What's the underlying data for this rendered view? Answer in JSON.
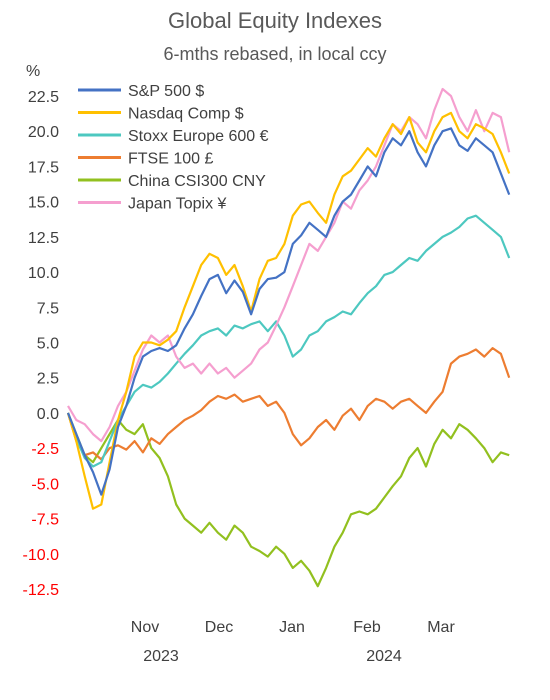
{
  "chart_data": {
    "type": "line",
    "title": "Global Equity Indexes",
    "subtitle": "6-mths rebased, in local ccy",
    "ylabel": "%",
    "ylim": [
      -12.5,
      22.5
    ],
    "yticks": [
      "22.5",
      "20.0",
      "17.5",
      "15.0",
      "12.5",
      "10.0",
      "7.5",
      "5.0",
      "2.5",
      "0.0",
      "-2.5",
      "-5.0",
      "-7.5",
      "-10.0",
      "-12.5"
    ],
    "x_months": [
      "Nov",
      "Dec",
      "Jan",
      "Feb",
      "Mar"
    ],
    "x_years": [
      "2023",
      "2024"
    ],
    "xlim_days": [
      0,
      160
    ],
    "negative_tick_color": "#ff0000",
    "positive_tick_color": "#404040",
    "legend_position": "top-left",
    "series": [
      {
        "name": "S&P 500 $",
        "color": "#4472c4",
        "x": [
          0,
          3,
          6,
          9,
          12,
          15,
          18,
          21,
          24,
          27,
          30,
          33,
          36,
          39,
          42,
          45,
          48,
          51,
          54,
          57,
          60,
          63,
          66,
          69,
          72,
          75,
          78,
          81,
          84,
          87,
          90,
          93,
          96,
          99,
          102,
          105,
          108,
          111,
          114,
          117,
          120,
          123,
          126,
          129,
          132,
          135,
          138,
          141,
          144,
          147,
          150,
          153,
          156,
          159
        ],
        "y": [
          0.0,
          -1.5,
          -3.0,
          -4.2,
          -5.8,
          -4.0,
          -1.0,
          0.5,
          2.5,
          4.0,
          4.4,
          4.6,
          4.4,
          4.8,
          6.0,
          7.0,
          8.3,
          9.5,
          9.8,
          8.5,
          9.4,
          8.6,
          7.0,
          8.8,
          9.5,
          9.6,
          10.0,
          12.0,
          12.6,
          13.5,
          13.0,
          12.5,
          14.0,
          15.0,
          15.5,
          16.5,
          17.5,
          16.8,
          18.5,
          19.5,
          19.0,
          20.0,
          18.5,
          17.5,
          19.0,
          20.0,
          20.2,
          19.0,
          18.6,
          19.5,
          19.0,
          18.5,
          17.0,
          15.5
        ]
      },
      {
        "name": "Nasdaq Comp $",
        "color": "#ffc000",
        "x": [
          0,
          3,
          6,
          9,
          12,
          15,
          18,
          21,
          24,
          27,
          30,
          33,
          36,
          39,
          42,
          45,
          48,
          51,
          54,
          57,
          60,
          63,
          66,
          69,
          72,
          75,
          78,
          81,
          84,
          87,
          90,
          93,
          96,
          99,
          102,
          105,
          108,
          111,
          114,
          117,
          120,
          123,
          126,
          129,
          132,
          135,
          138,
          141,
          144,
          147,
          150,
          153,
          156,
          159
        ],
        "y": [
          0.0,
          -2.0,
          -4.5,
          -6.8,
          -6.5,
          -3.5,
          -0.5,
          1.5,
          4.0,
          5.0,
          5.0,
          4.8,
          5.2,
          5.8,
          7.5,
          9.0,
          10.5,
          11.3,
          11.0,
          9.8,
          10.5,
          9.0,
          7.2,
          9.5,
          10.8,
          11.0,
          12.0,
          14.0,
          14.8,
          15.0,
          14.2,
          13.5,
          15.5,
          16.8,
          17.2,
          18.0,
          18.8,
          18.2,
          19.5,
          20.5,
          19.8,
          21.0,
          19.2,
          18.5,
          20.0,
          21.0,
          21.3,
          20.0,
          19.5,
          20.5,
          20.2,
          19.8,
          18.5,
          17.0
        ]
      },
      {
        "name": "Stoxx Europe 600 €",
        "color": "#4dc8c0",
        "x": [
          0,
          3,
          6,
          9,
          12,
          15,
          18,
          21,
          24,
          27,
          30,
          33,
          36,
          39,
          42,
          45,
          48,
          51,
          54,
          57,
          60,
          63,
          66,
          69,
          72,
          75,
          78,
          81,
          84,
          87,
          90,
          93,
          96,
          99,
          102,
          105,
          108,
          111,
          114,
          117,
          120,
          123,
          126,
          129,
          132,
          135,
          138,
          141,
          144,
          147,
          150,
          153,
          156,
          159
        ],
        "y": [
          0.0,
          -1.8,
          -3.2,
          -3.8,
          -3.5,
          -2.0,
          -0.5,
          0.5,
          1.5,
          2.0,
          1.8,
          2.2,
          2.8,
          3.5,
          4.2,
          4.8,
          5.5,
          5.8,
          6.0,
          5.5,
          6.2,
          6.0,
          6.3,
          6.5,
          5.8,
          6.5,
          5.5,
          4.0,
          4.5,
          5.5,
          5.8,
          6.5,
          6.8,
          7.2,
          7.0,
          7.8,
          8.5,
          9.0,
          9.8,
          10.0,
          10.5,
          11.0,
          10.8,
          11.5,
          12.0,
          12.5,
          12.8,
          13.2,
          13.8,
          14.0,
          13.5,
          13.0,
          12.5,
          11.0
        ]
      },
      {
        "name": "FTSE 100  £",
        "color": "#ed7d31",
        "x": [
          0,
          3,
          6,
          9,
          12,
          15,
          18,
          21,
          24,
          27,
          30,
          33,
          36,
          39,
          42,
          45,
          48,
          51,
          54,
          57,
          60,
          63,
          66,
          69,
          72,
          75,
          78,
          81,
          84,
          87,
          90,
          93,
          96,
          99,
          102,
          105,
          108,
          111,
          114,
          117,
          120,
          123,
          126,
          129,
          132,
          135,
          138,
          141,
          144,
          147,
          150,
          153,
          156,
          159
        ],
        "y": [
          0.0,
          -2.0,
          -3.0,
          -2.8,
          -3.3,
          -2.5,
          -2.3,
          -2.6,
          -2.0,
          -2.8,
          -1.8,
          -2.2,
          -1.5,
          -1.0,
          -0.5,
          -0.2,
          0.2,
          0.8,
          1.2,
          1.0,
          1.3,
          0.8,
          1.0,
          1.2,
          0.5,
          0.8,
          0.0,
          -1.5,
          -2.3,
          -1.8,
          -1.0,
          -0.5,
          -1.2,
          -0.2,
          0.3,
          -0.5,
          0.5,
          1.0,
          0.8,
          0.3,
          0.8,
          1.0,
          0.5,
          0.0,
          0.8,
          1.5,
          3.5,
          4.0,
          4.2,
          4.5,
          4.0,
          4.6,
          4.2,
          2.5
        ]
      },
      {
        "name": "China CSI300  CNY",
        "color": "#92c01f",
        "x": [
          0,
          3,
          6,
          9,
          12,
          15,
          18,
          21,
          24,
          27,
          30,
          33,
          36,
          39,
          42,
          45,
          48,
          51,
          54,
          57,
          60,
          63,
          66,
          69,
          72,
          75,
          78,
          81,
          84,
          87,
          90,
          93,
          96,
          99,
          102,
          105,
          108,
          111,
          114,
          117,
          120,
          123,
          126,
          129,
          132,
          135,
          138,
          141,
          144,
          147,
          150,
          153,
          156,
          159
        ],
        "y": [
          0.0,
          -1.5,
          -3.0,
          -3.5,
          -2.5,
          -1.5,
          -0.5,
          -1.2,
          -1.5,
          -0.8,
          -2.5,
          -3.2,
          -4.5,
          -6.5,
          -7.5,
          -8.0,
          -8.5,
          -7.8,
          -8.5,
          -9.0,
          -8.0,
          -8.5,
          -9.5,
          -9.8,
          -10.2,
          -9.5,
          -10.0,
          -11.0,
          -10.5,
          -11.2,
          -12.3,
          -11.0,
          -9.5,
          -8.5,
          -7.2,
          -7.0,
          -7.2,
          -6.8,
          -6.0,
          -5.2,
          -4.5,
          -3.2,
          -2.5,
          -3.8,
          -2.2,
          -1.2,
          -1.8,
          -0.8,
          -1.2,
          -1.8,
          -2.5,
          -3.5,
          -2.8,
          -3.0
        ]
      },
      {
        "name": "Japan Topix ¥",
        "color": "#f59fcf",
        "x": [
          0,
          3,
          6,
          9,
          12,
          15,
          18,
          21,
          24,
          27,
          30,
          33,
          36,
          39,
          42,
          45,
          48,
          51,
          54,
          57,
          60,
          63,
          66,
          69,
          72,
          75,
          78,
          81,
          84,
          87,
          90,
          93,
          96,
          99,
          102,
          105,
          108,
          111,
          114,
          117,
          120,
          123,
          126,
          129,
          132,
          135,
          138,
          141,
          144,
          147,
          150,
          153,
          156,
          159
        ],
        "y": [
          0.5,
          -0.5,
          -0.8,
          -1.5,
          -2.0,
          -1.0,
          0.5,
          1.5,
          3.0,
          4.5,
          5.5,
          5.0,
          5.5,
          4.0,
          3.2,
          3.5,
          2.8,
          3.5,
          2.8,
          3.2,
          2.5,
          3.0,
          3.5,
          4.5,
          5.0,
          6.2,
          7.5,
          9.0,
          10.5,
          12.0,
          11.5,
          12.5,
          13.5,
          15.0,
          14.5,
          15.8,
          16.5,
          17.5,
          19.0,
          20.5,
          20.0,
          21.0,
          20.5,
          19.5,
          21.5,
          23.0,
          22.5,
          21.0,
          20.0,
          21.5,
          20.0,
          21.3,
          21.0,
          18.5
        ]
      }
    ]
  }
}
